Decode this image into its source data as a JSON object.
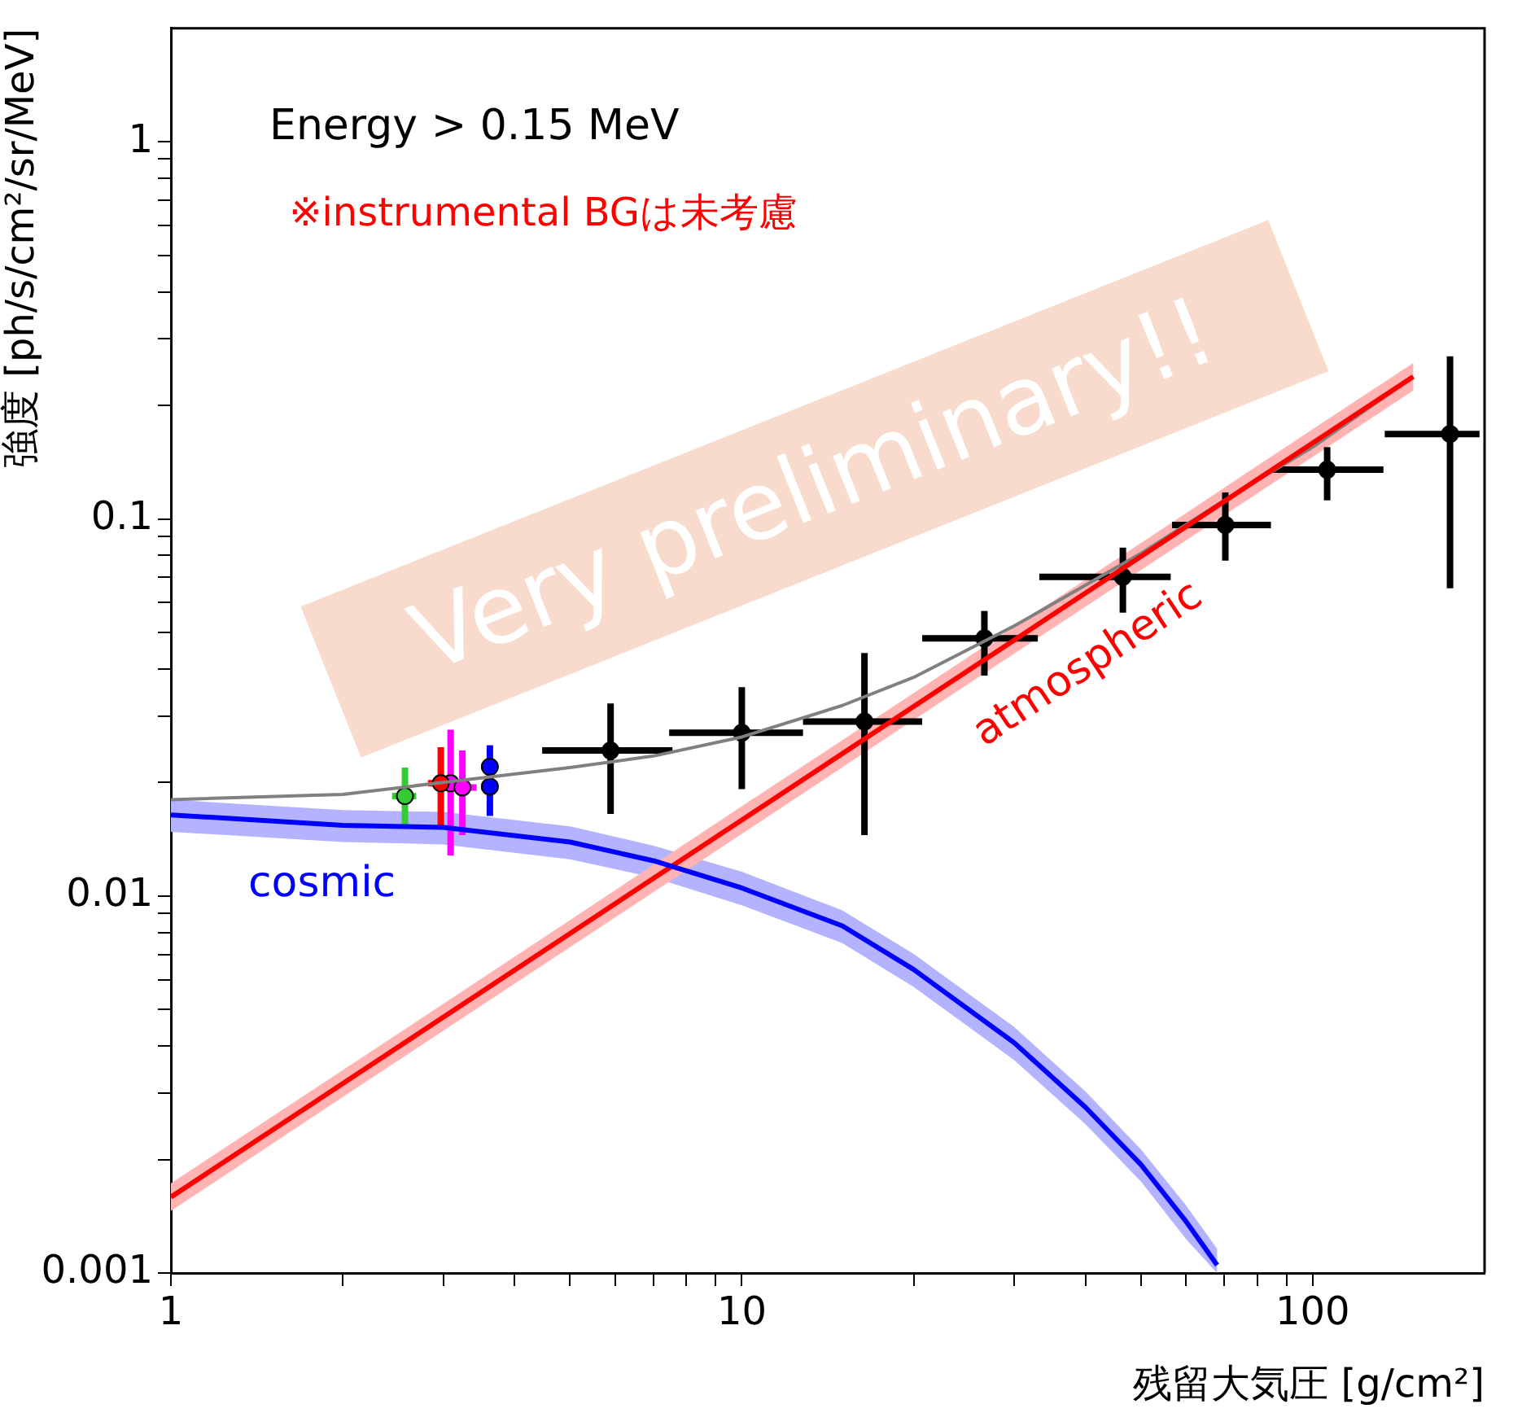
{
  "chart_data": {
    "type": "scatter",
    "xlabel": "残留大気圧 [g/cm²]",
    "ylabel": "強度 [ph/s/cm²/sr/MeV]",
    "log": "xy",
    "marker": "circle",
    "grid": false,
    "xlim": [
      1,
      200
    ],
    "ylim": [
      0.001,
      2
    ],
    "xticks": [
      1,
      {
        "value": 2,
        "label": null
      },
      {
        "value": 3,
        "label": null
      },
      {
        "value": 4,
        "label": null
      },
      {
        "value": 5,
        "label": null
      },
      {
        "value": 6,
        "label": null
      },
      {
        "value": 7,
        "label": null
      },
      {
        "value": 8,
        "label": null
      },
      {
        "value": 9,
        "label": null
      },
      10,
      {
        "value": 20,
        "label": null
      },
      {
        "value": 30,
        "label": null
      },
      {
        "value": 40,
        "label": null
      },
      {
        "value": 50,
        "label": null
      },
      {
        "value": 60,
        "label": null
      },
      {
        "value": 70,
        "label": null
      },
      {
        "value": 80,
        "label": null
      },
      {
        "value": 90,
        "label": null
      },
      100
    ],
    "yticks": [
      0.001,
      {
        "value": 0.002,
        "label": null
      },
      {
        "value": 0.003,
        "label": null
      },
      {
        "value": 0.004,
        "label": null
      },
      {
        "value": 0.005,
        "label": null
      },
      {
        "value": 0.006,
        "label": null
      },
      {
        "value": 0.007,
        "label": null
      },
      {
        "value": 0.008,
        "label": null
      },
      {
        "value": 0.009,
        "label": null
      },
      0.01,
      {
        "value": 0.02,
        "label": null
      },
      {
        "value": 0.03,
        "label": null
      },
      {
        "value": 0.04,
        "label": null
      },
      {
        "value": 0.05,
        "label": null
      },
      {
        "value": 0.06,
        "label": null
      },
      {
        "value": 0.07,
        "label": null
      },
      {
        "value": 0.08,
        "label": null
      },
      {
        "value": 0.09,
        "label": null
      },
      0.1,
      {
        "value": 0.2,
        "label": null
      },
      {
        "value": 0.3,
        "label": null
      },
      {
        "value": 0.4,
        "label": null
      },
      {
        "value": 0.5,
        "label": null
      },
      {
        "value": 0.6,
        "label": null
      },
      {
        "value": 0.7,
        "label": null
      },
      {
        "value": 0.8,
        "label": null
      },
      {
        "value": 0.9,
        "label": null
      },
      1
    ],
    "annotations": [
      "Energy > 0.15 MeV",
      "※instrumental BGは未考慮",
      "Very preliminary!!"
    ],
    "series": [
      {
        "type": "line",
        "marker": "none",
        "name": "cosmic",
        "color": "#0000ff",
        "x": [
          1,
          2,
          3,
          5,
          7,
          10,
          15,
          20,
          30,
          40,
          50,
          60,
          68
        ],
        "values": [
          0.0164,
          0.0154,
          0.0152,
          0.0139,
          0.0124,
          0.0105,
          0.00833,
          0.00638,
          0.00408,
          0.00275,
          0.00194,
          0.00137,
          0.00105
        ],
        "lower": [
          0.0148,
          0.0139,
          0.0137,
          0.0125,
          0.0112,
          0.00945,
          0.0075,
          0.00574,
          0.00367,
          0.00248,
          0.00175,
          0.00123,
          0.001
        ],
        "upper": [
          0.018,
          0.0169,
          0.0167,
          0.0153,
          0.0136,
          0.0116,
          0.00916,
          0.00702,
          0.00449,
          0.00303,
          0.00213,
          0.00151,
          0.00116
        ]
      },
      {
        "type": "line",
        "marker": "none",
        "name": "atmospheric",
        "color": "#ff0000",
        "x": [
          1,
          2,
          5,
          10,
          20,
          50,
          100,
          150
        ],
        "values": [
          0.00159,
          0.00318,
          0.00795,
          0.0159,
          0.0318,
          0.0795,
          0.159,
          0.2385
        ],
        "lower": [
          0.00146,
          0.00293,
          0.00731,
          0.0146,
          0.0293,
          0.0731,
          0.146,
          0.219
        ],
        "upper": [
          0.00173,
          0.00345,
          0.00863,
          0.0173,
          0.0345,
          0.0863,
          0.173,
          0.259
        ]
      },
      {
        "type": "line",
        "marker": "none",
        "color": "#808080",
        "x": [
          1,
          2,
          3,
          5,
          7,
          10,
          15,
          20,
          30,
          50,
          70,
          100,
          150
        ],
        "values": [
          0.018,
          0.0186,
          0.02,
          0.0219,
          0.0235,
          0.0264,
          0.032,
          0.038,
          0.052,
          0.081,
          0.112,
          0.155,
          0.238
        ]
      },
      {
        "color": "#000000",
        "x": [
          5.89,
          10.0,
          16.4,
          26.6,
          46.5,
          70.3,
          106,
          174
        ],
        "values": [
          0.0243,
          0.0271,
          0.029,
          0.0482,
          0.0702,
          0.0964,
          0.135,
          0.168
        ],
        "errors": [
          [
            0.0165,
            0.0324
          ],
          [
            0.0192,
            0.0358
          ],
          [
            0.0145,
            0.0441
          ],
          [
            0.0384,
            0.057
          ],
          [
            0.0564,
            0.0839
          ],
          [
            0.0775,
            0.1175
          ],
          [
            0.112,
            0.155
          ],
          [
            0.0655,
            0.27
          ]
        ],
        "xerrors": [
          [
            4.47,
            7.56
          ],
          [
            7.46,
            12.8
          ],
          [
            12.8,
            20.7
          ],
          [
            20.7,
            33.0
          ],
          [
            33.2,
            56.4
          ],
          [
            56.7,
            84.5
          ],
          [
            85.1,
            133
          ],
          [
            133.7,
            196
          ]
        ]
      },
      {
        "color": "#33cc33",
        "x": [
          2.57
        ],
        "values": [
          0.0184
        ],
        "errors": [
          [
            0.0152,
            0.0219
          ]
        ],
        "xerrors": [
          [
            2.44,
            2.69
          ]
        ]
      },
      {
        "color": "#ff0000",
        "x": [
          2.97
        ],
        "values": [
          0.0199
        ],
        "errors": [
          [
            0.0151,
            0.0248
          ]
        ],
        "xerrors": [
          [
            2.82,
            3.15
          ]
        ]
      },
      {
        "color": "#ff00ff",
        "x": [
          3.09,
          3.24
        ],
        "values": [
          0.0199,
          0.0194
        ],
        "errors": [
          [
            0.0128,
            0.0276
          ],
          [
            0.0145,
            0.0243
          ]
        ],
        "xerrors": [
          null,
          [
            3.09,
            3.43
          ]
        ]
      },
      {
        "color": "#0000ff",
        "x": [
          3.62,
          3.62
        ],
        "values": [
          0.022,
          0.0195
        ],
        "errors": [
          [
            0.02,
            0.0251
          ],
          [
            0.0163,
            0.022
          ]
        ],
        "xerrors": [
          [
            3.5,
            3.74
          ],
          [
            3.5,
            3.74
          ]
        ]
      }
    ]
  }
}
